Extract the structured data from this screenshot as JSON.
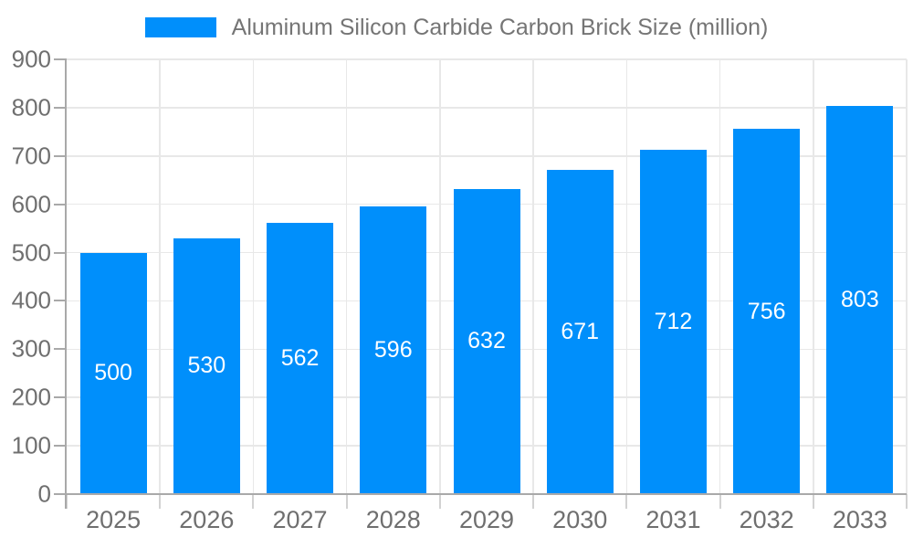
{
  "chart_data": {
    "type": "bar",
    "legend": {
      "position": "top",
      "label": "Aluminum Silicon Carbide Carbon Brick Size (million)"
    },
    "categories": [
      "2025",
      "2026",
      "2027",
      "2028",
      "2029",
      "2030",
      "2031",
      "2032",
      "2033"
    ],
    "values": [
      500,
      530,
      562,
      596,
      632,
      671,
      712,
      756,
      803
    ],
    "yticks": [
      0,
      100,
      200,
      300,
      400,
      500,
      600,
      700,
      800,
      900
    ],
    "ylim": [
      0,
      900
    ],
    "xlabel": "",
    "ylabel": "",
    "grid": true,
    "bar_label_position": "inside-center",
    "colors": {
      "bar": "#008FFB",
      "grid": "#e8e8e8",
      "axis": "#a9a9a9",
      "x_tick": "#d2d2d2",
      "axis_label": "#6f6f6f",
      "legend_label": "#757575",
      "value_label": "#ffffff",
      "background": "#ffffff"
    }
  }
}
